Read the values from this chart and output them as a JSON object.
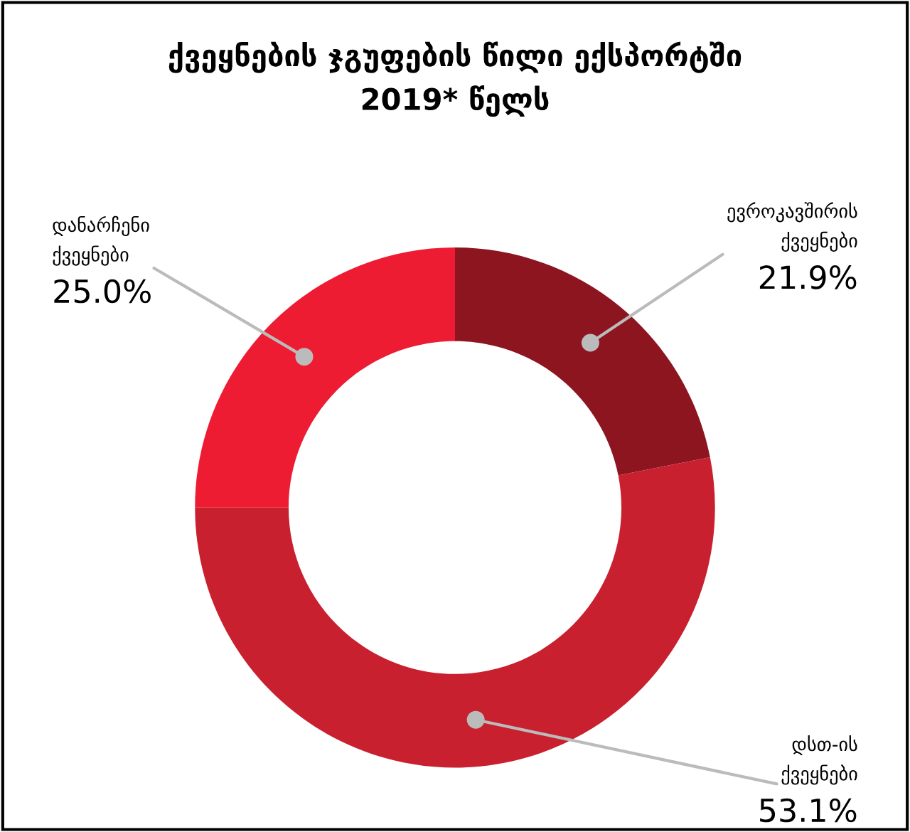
{
  "chart_data": {
    "type": "donut",
    "title": "ქვეყნების ჯგუფების წილი ექსპორტში\n2019* წელს",
    "categories": [
      "ევროკავშირის\nქვეყნები",
      "დსთ-ის\nქვეყნები",
      "დანარჩენი\nქვეყნები"
    ],
    "values": [
      21.9,
      53.1,
      25.0
    ],
    "colors": [
      "#8c1520",
      "#c8202f",
      "#ee1c33"
    ],
    "value_labels": [
      "21.9%",
      "53.1%",
      "25.0%"
    ],
    "legend": false
  }
}
